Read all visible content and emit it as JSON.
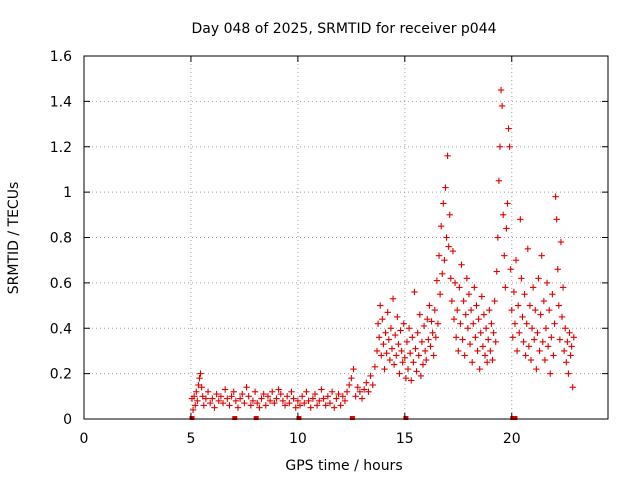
{
  "chart_data": {
    "type": "scatter",
    "title": "Day 048 of 2025, SRMTID for receiver p044",
    "xlabel": "GPS time / hours",
    "ylabel": "SRMTID / TECUs",
    "xlim": [
      0,
      24.5
    ],
    "ylim": [
      0,
      1.6
    ],
    "xticks": [
      0,
      5,
      10,
      15,
      20
    ],
    "xtick_labels": [
      "0",
      "5",
      "10",
      "15",
      "20"
    ],
    "yticks": [
      0,
      0.2,
      0.4,
      0.6,
      0.8,
      1.0,
      1.2,
      1.4,
      1.6
    ],
    "ytick_labels": [
      "0",
      "0.2",
      "0.4",
      "0.6",
      "0.8",
      "1",
      "1.2",
      "1.4",
      "1.6"
    ],
    "grid": true,
    "marker": "+",
    "color": "#e00000",
    "series": [
      {
        "name": "SRMTID",
        "points": [
          [
            5.05,
            0.09
          ],
          [
            5.1,
            0.04
          ],
          [
            5.15,
            0.1
          ],
          [
            5.2,
            0.06
          ],
          [
            5.25,
            0.12
          ],
          [
            5.3,
            0.08
          ],
          [
            5.35,
            0.15
          ],
          [
            5.4,
            0.18
          ],
          [
            5.45,
            0.2
          ],
          [
            5.5,
            0.14
          ],
          [
            5.55,
            0.1
          ],
          [
            5.6,
            0.06
          ],
          [
            5.7,
            0.09
          ],
          [
            5.8,
            0.12
          ],
          [
            5.9,
            0.07
          ],
          [
            6.0,
            0.09
          ],
          [
            6.1,
            0.05
          ],
          [
            6.2,
            0.11
          ],
          [
            6.3,
            0.08
          ],
          [
            6.4,
            0.1
          ],
          [
            6.5,
            0.07
          ],
          [
            6.6,
            0.13
          ],
          [
            6.7,
            0.09
          ],
          [
            6.8,
            0.06
          ],
          [
            6.9,
            0.1
          ],
          [
            7.0,
            0.12
          ],
          [
            7.1,
            0.08
          ],
          [
            7.2,
            0.05
          ],
          [
            7.3,
            0.09
          ],
          [
            7.4,
            0.11
          ],
          [
            7.5,
            0.07
          ],
          [
            7.6,
            0.14
          ],
          [
            7.7,
            0.1
          ],
          [
            7.8,
            0.06
          ],
          [
            7.9,
            0.08
          ],
          [
            8.0,
            0.12
          ],
          [
            8.1,
            0.07
          ],
          [
            8.2,
            0.05
          ],
          [
            8.3,
            0.09
          ],
          [
            8.4,
            0.11
          ],
          [
            8.5,
            0.06
          ],
          [
            8.6,
            0.1
          ],
          [
            8.7,
            0.08
          ],
          [
            8.8,
            0.12
          ],
          [
            8.9,
            0.07
          ],
          [
            9.0,
            0.09
          ],
          [
            9.1,
            0.13
          ],
          [
            9.2,
            0.11
          ],
          [
            9.3,
            0.08
          ],
          [
            9.4,
            0.06
          ],
          [
            9.5,
            0.1
          ],
          [
            9.6,
            0.07
          ],
          [
            9.7,
            0.12
          ],
          [
            9.8,
            0.09
          ],
          [
            9.9,
            0.05
          ],
          [
            10.0,
            0.08
          ],
          [
            10.1,
            0.06
          ],
          [
            10.2,
            0.1
          ],
          [
            10.3,
            0.07
          ],
          [
            10.4,
            0.12
          ],
          [
            10.5,
            0.08
          ],
          [
            10.6,
            0.05
          ],
          [
            10.7,
            0.09
          ],
          [
            10.8,
            0.11
          ],
          [
            10.9,
            0.06
          ],
          [
            11.0,
            0.08
          ],
          [
            11.1,
            0.13
          ],
          [
            11.2,
            0.09
          ],
          [
            11.3,
            0.06
          ],
          [
            11.4,
            0.1
          ],
          [
            11.5,
            0.07
          ],
          [
            11.6,
            0.12
          ],
          [
            11.7,
            0.05
          ],
          [
            11.8,
            0.09
          ],
          [
            11.9,
            0.11
          ],
          [
            12.0,
            0.06
          ],
          [
            12.1,
            0.1
          ],
          [
            12.2,
            0.08
          ],
          [
            12.3,
            0.12
          ],
          [
            12.4,
            0.15
          ],
          [
            12.5,
            0.18
          ],
          [
            12.6,
            0.22
          ],
          [
            12.7,
            0.1
          ],
          [
            12.8,
            0.14
          ],
          [
            12.9,
            0.12
          ],
          [
            13.0,
            0.09
          ],
          [
            13.1,
            0.13
          ],
          [
            13.2,
            0.16
          ],
          [
            13.3,
            0.12
          ],
          [
            13.4,
            0.19
          ],
          [
            13.5,
            0.15
          ],
          [
            13.6,
            0.23
          ],
          [
            13.7,
            0.3
          ],
          [
            13.75,
            0.42
          ],
          [
            13.8,
            0.36
          ],
          [
            13.85,
            0.5
          ],
          [
            13.9,
            0.28
          ],
          [
            13.95,
            0.44
          ],
          [
            14.0,
            0.33
          ],
          [
            14.05,
            0.22
          ],
          [
            14.1,
            0.38
          ],
          [
            14.15,
            0.29
          ],
          [
            14.2,
            0.47
          ],
          [
            14.25,
            0.35
          ],
          [
            14.3,
            0.26
          ],
          [
            14.35,
            0.4
          ],
          [
            14.4,
            0.31
          ],
          [
            14.45,
            0.53
          ],
          [
            14.5,
            0.24
          ],
          [
            14.55,
            0.37
          ],
          [
            14.6,
            0.28
          ],
          [
            14.65,
            0.45
          ],
          [
            14.7,
            0.33
          ],
          [
            14.75,
            0.2
          ],
          [
            14.8,
            0.39
          ],
          [
            14.85,
            0.3
          ],
          [
            14.9,
            0.25
          ],
          [
            14.95,
            0.42
          ],
          [
            15.0,
            0.27
          ],
          [
            15.05,
            0.18
          ],
          [
            15.1,
            0.34
          ],
          [
            15.15,
            0.22
          ],
          [
            15.2,
            0.4
          ],
          [
            15.25,
            0.29
          ],
          [
            15.3,
            0.17
          ],
          [
            15.35,
            0.36
          ],
          [
            15.4,
            0.25
          ],
          [
            15.45,
            0.56
          ],
          [
            15.5,
            0.31
          ],
          [
            15.55,
            0.21
          ],
          [
            15.6,
            0.38
          ],
          [
            15.65,
            0.28
          ],
          [
            15.7,
            0.46
          ],
          [
            15.75,
            0.19
          ],
          [
            15.8,
            0.34
          ],
          [
            15.85,
            0.24
          ],
          [
            15.9,
            0.41
          ],
          [
            15.95,
            0.3
          ],
          [
            16.0,
            0.26
          ],
          [
            16.05,
            0.44
          ],
          [
            16.1,
            0.35
          ],
          [
            16.15,
            0.5
          ],
          [
            16.2,
            0.32
          ],
          [
            16.25,
            0.43
          ],
          [
            16.3,
            0.38
          ],
          [
            16.35,
            0.28
          ],
          [
            16.4,
            0.48
          ],
          [
            16.45,
            0.36
          ],
          [
            16.5,
            0.61
          ],
          [
            16.55,
            0.42
          ],
          [
            16.6,
            0.72
          ],
          [
            16.65,
            0.55
          ],
          [
            16.7,
            0.85
          ],
          [
            16.75,
            0.64
          ],
          [
            16.8,
            0.95
          ],
          [
            16.85,
            0.7
          ],
          [
            16.9,
            1.02
          ],
          [
            16.95,
            0.8
          ],
          [
            17.0,
            1.16
          ],
          [
            17.05,
            0.76
          ],
          [
            17.1,
            0.9
          ],
          [
            17.15,
            0.62
          ],
          [
            17.2,
            0.52
          ],
          [
            17.25,
            0.74
          ],
          [
            17.3,
            0.44
          ],
          [
            17.35,
            0.6
          ],
          [
            17.4,
            0.36
          ],
          [
            17.45,
            0.48
          ],
          [
            17.5,
            0.3
          ],
          [
            17.55,
            0.58
          ],
          [
            17.6,
            0.42
          ],
          [
            17.65,
            0.68
          ],
          [
            17.7,
            0.35
          ],
          [
            17.75,
            0.52
          ],
          [
            17.8,
            0.28
          ],
          [
            17.85,
            0.46
          ],
          [
            17.9,
            0.62
          ],
          [
            17.95,
            0.4
          ],
          [
            18.0,
            0.55
          ],
          [
            18.05,
            0.33
          ],
          [
            18.1,
            0.48
          ],
          [
            18.15,
            0.25
          ],
          [
            18.2,
            0.42
          ],
          [
            18.25,
            0.58
          ],
          [
            18.3,
            0.36
          ],
          [
            18.35,
            0.5
          ],
          [
            18.4,
            0.3
          ],
          [
            18.45,
            0.44
          ],
          [
            18.5,
            0.22
          ],
          [
            18.55,
            0.38
          ],
          [
            18.6,
            0.54
          ],
          [
            18.65,
            0.32
          ],
          [
            18.7,
            0.46
          ],
          [
            18.75,
            0.28
          ],
          [
            18.8,
            0.4
          ],
          [
            18.85,
            0.25
          ],
          [
            18.9,
            0.35
          ],
          [
            18.95,
            0.48
          ],
          [
            19.0,
            0.3
          ],
          [
            19.05,
            0.42
          ],
          [
            19.1,
            0.26
          ],
          [
            19.15,
            0.38
          ],
          [
            19.2,
            0.52
          ],
          [
            19.25,
            0.34
          ],
          [
            19.3,
            0.65
          ],
          [
            19.35,
            0.8
          ],
          [
            19.4,
            1.05
          ],
          [
            19.45,
            1.2
          ],
          [
            19.5,
            1.45
          ],
          [
            19.55,
            1.38
          ],
          [
            19.6,
            0.9
          ],
          [
            19.65,
            0.72
          ],
          [
            19.7,
            0.58
          ],
          [
            19.75,
            0.84
          ],
          [
            19.8,
            0.95
          ],
          [
            19.85,
            1.28
          ],
          [
            19.9,
            1.2
          ],
          [
            19.95,
            0.66
          ],
          [
            20.0,
            0.48
          ],
          [
            20.05,
            0.36
          ],
          [
            20.1,
            0.56
          ],
          [
            20.15,
            0.42
          ],
          [
            20.2,
            0.7
          ],
          [
            20.25,
            0.3
          ],
          [
            20.3,
            0.5
          ],
          [
            20.35,
            0.38
          ],
          [
            20.4,
            0.88
          ],
          [
            20.45,
            0.62
          ],
          [
            20.5,
            0.45
          ],
          [
            20.55,
            0.34
          ],
          [
            20.6,
            0.55
          ],
          [
            20.65,
            0.28
          ],
          [
            20.7,
            0.42
          ],
          [
            20.75,
            0.75
          ],
          [
            20.8,
            0.32
          ],
          [
            20.85,
            0.5
          ],
          [
            20.9,
            0.26
          ],
          [
            20.95,
            0.4
          ],
          [
            21.0,
            0.58
          ],
          [
            21.05,
            0.35
          ],
          [
            21.1,
            0.48
          ],
          [
            21.15,
            0.22
          ],
          [
            21.2,
            0.38
          ],
          [
            21.25,
            0.62
          ],
          [
            21.3,
            0.3
          ],
          [
            21.35,
            0.46
          ],
          [
            21.4,
            0.72
          ],
          [
            21.45,
            0.34
          ],
          [
            21.5,
            0.52
          ],
          [
            21.55,
            0.26
          ],
          [
            21.6,
            0.4
          ],
          [
            21.65,
            0.6
          ],
          [
            21.7,
            0.32
          ],
          [
            21.75,
            0.48
          ],
          [
            21.8,
            0.2
          ],
          [
            21.85,
            0.36
          ],
          [
            21.9,
            0.55
          ],
          [
            21.95,
            0.28
          ],
          [
            22.0,
            0.42
          ],
          [
            22.05,
            0.98
          ],
          [
            22.1,
            0.88
          ],
          [
            22.15,
            0.66
          ],
          [
            22.2,
            0.5
          ],
          [
            22.25,
            0.35
          ],
          [
            22.3,
            0.78
          ],
          [
            22.35,
            0.45
          ],
          [
            22.4,
            0.58
          ],
          [
            22.45,
            0.3
          ],
          [
            22.5,
            0.4
          ],
          [
            22.55,
            0.25
          ],
          [
            22.6,
            0.34
          ],
          [
            22.65,
            0.2
          ],
          [
            22.7,
            0.38
          ],
          [
            22.75,
            0.28
          ],
          [
            22.8,
            0.32
          ],
          [
            22.85,
            0.14
          ],
          [
            22.9,
            0.36
          ]
        ],
        "zero_points": [
          5.05,
          7.05,
          8.05,
          10.05,
          12.55,
          15.05,
          20.05,
          20.15
        ]
      }
    ]
  }
}
